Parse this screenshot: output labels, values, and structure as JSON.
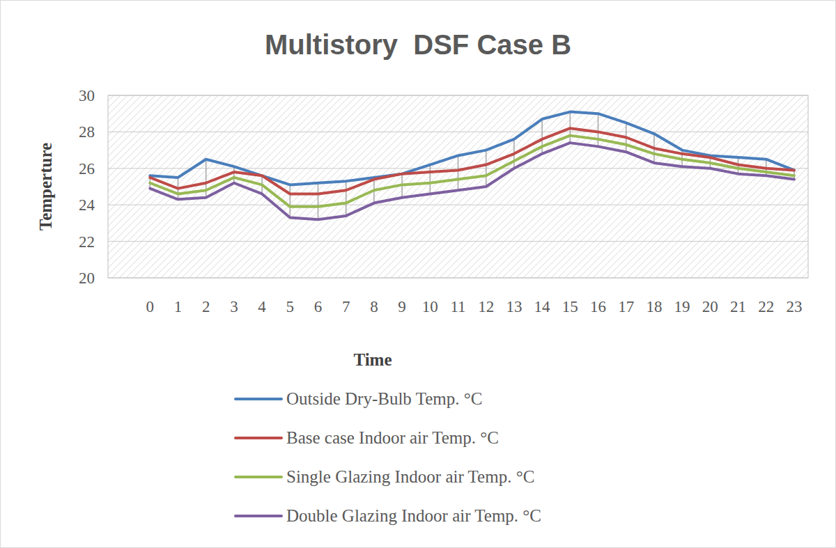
{
  "chart_data": {
    "type": "line",
    "title": "Multistory  DSF Case B",
    "x_label": "Time",
    "y_label": "Temperture",
    "categories": [
      null,
      "0",
      "1",
      "2",
      "3",
      "4",
      "5",
      "6",
      "7",
      "8",
      "9",
      "10",
      "11",
      "12",
      "13",
      "14",
      "15",
      "16",
      "17",
      "18",
      "19",
      "20",
      "21",
      "22",
      "23"
    ],
    "series": [
      {
        "name": "Outside Dry-Bulb Temp. °C",
        "color": "#4a7ebb",
        "values": [
          null,
          25.6,
          25.5,
          26.5,
          26.1,
          25.6,
          25.1,
          25.2,
          25.3,
          25.5,
          25.7,
          26.2,
          26.7,
          27.0,
          27.6,
          28.7,
          29.1,
          29.0,
          28.5,
          27.9,
          27.0,
          26.7,
          26.6,
          26.5,
          25.9
        ]
      },
      {
        "name": "Base case Indoor air Temp. °C",
        "color": "#be4b48",
        "values": [
          null,
          25.5,
          24.9,
          25.2,
          25.8,
          25.6,
          24.6,
          24.6,
          24.8,
          25.4,
          25.7,
          25.8,
          25.9,
          26.2,
          26.8,
          27.6,
          28.2,
          28.0,
          27.7,
          27.1,
          26.8,
          26.6,
          26.2,
          26.0,
          25.9
        ]
      },
      {
        "name": "Single Glazing Indoor air Temp. °C",
        "color": "#98b954",
        "values": [
          null,
          25.2,
          24.6,
          24.8,
          25.5,
          25.1,
          23.9,
          23.9,
          24.1,
          24.8,
          25.1,
          25.2,
          25.4,
          25.6,
          26.4,
          27.2,
          27.8,
          27.6,
          27.3,
          26.8,
          26.5,
          26.3,
          26.0,
          25.8,
          25.6
        ]
      },
      {
        "name": "Double Glazing Indoor air Temp. °C",
        "color": "#7d60a0",
        "values": [
          null,
          24.9,
          24.3,
          24.4,
          25.2,
          24.6,
          23.3,
          23.2,
          23.4,
          24.1,
          24.4,
          24.6,
          24.8,
          25.0,
          26.0,
          26.8,
          27.4,
          27.2,
          26.9,
          26.3,
          26.1,
          26.0,
          25.7,
          25.6,
          25.4
        ]
      }
    ],
    "ylim": [
      20,
      30
    ],
    "yticks": [
      20,
      22,
      24,
      26,
      28,
      30
    ],
    "grid": true,
    "legend": "bottom"
  }
}
